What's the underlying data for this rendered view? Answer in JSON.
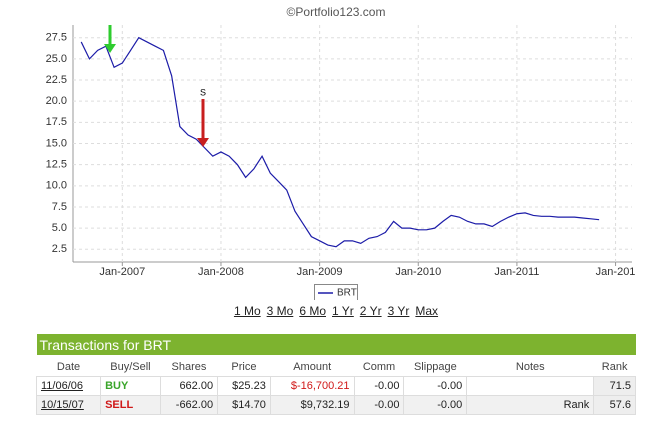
{
  "header": {
    "watermark": "©Portfolio123.com"
  },
  "chart_data": {
    "type": "line",
    "x": [
      "2006-08",
      "2006-09",
      "2006-10",
      "2006-11",
      "2006-12",
      "2007-01",
      "2007-02",
      "2007-03",
      "2007-04",
      "2007-05",
      "2007-06",
      "2007-07",
      "2007-08",
      "2007-09",
      "2007-10",
      "2007-11",
      "2007-12",
      "2008-01",
      "2008-02",
      "2008-03",
      "2008-04",
      "2008-05",
      "2008-06",
      "2008-07",
      "2008-08",
      "2008-09",
      "2008-10",
      "2008-11",
      "2008-12",
      "2009-01",
      "2009-02",
      "2009-03",
      "2009-04",
      "2009-05",
      "2009-06",
      "2009-07",
      "2009-08",
      "2009-09",
      "2009-10",
      "2009-11",
      "2009-12",
      "2010-01",
      "2010-02",
      "2010-03",
      "2010-04",
      "2010-05",
      "2010-06",
      "2010-07",
      "2010-08",
      "2010-09",
      "2010-10",
      "2010-11",
      "2010-12",
      "2011-01",
      "2011-02",
      "2011-03",
      "2011-04",
      "2011-05",
      "2011-06",
      "2011-07",
      "2011-08",
      "2011-09",
      "2011-10",
      "2011-11"
    ],
    "series": [
      {
        "name": "BRT",
        "color": "#1c1ca8",
        "values": [
          27,
          25,
          26,
          26.5,
          24,
          24.5,
          26,
          27.5,
          27,
          26.5,
          26,
          23,
          17,
          16,
          15.5,
          14.5,
          13.5,
          14,
          13.5,
          12.5,
          11,
          12,
          13.5,
          11.5,
          10.5,
          9.5,
          7,
          5.5,
          4,
          3.5,
          3,
          2.8,
          3.5,
          3.5,
          3.2,
          3.8,
          4,
          4.5,
          5.8,
          5,
          5,
          4.8,
          4.8,
          5,
          5.8,
          6.5,
          6.3,
          5.8,
          5.5,
          5.5,
          5.2,
          5.8,
          6.3,
          6.7,
          6.8,
          6.5,
          6.4,
          6.4,
          6.3,
          6.3,
          6.3,
          6.2,
          6.1,
          6
        ]
      }
    ],
    "xlim": [
      "2006-07",
      "2012-03"
    ],
    "xticks": [
      {
        "value": "2007-01",
        "label": "Jan-2007"
      },
      {
        "value": "2008-01",
        "label": "Jan-2008"
      },
      {
        "value": "2009-01",
        "label": "Jan-2009"
      },
      {
        "value": "2010-01",
        "label": "Jan-2010"
      },
      {
        "value": "2011-01",
        "label": "Jan-2011"
      },
      {
        "value": "2012-01",
        "label": "Jan-201"
      }
    ],
    "ylim": [
      1,
      29
    ],
    "yticks": [
      2.5,
      {
        "value": 5,
        "label": "5.0"
      },
      7.5,
      {
        "value": 10,
        "label": "10.0"
      },
      12.5,
      {
        "value": 15,
        "label": "15.0"
      },
      17.5,
      {
        "value": 20,
        "label": "20.0"
      },
      22.5,
      {
        "value": 25,
        "label": "25.0"
      },
      27.5
    ],
    "grid": true,
    "annotations": [
      "S"
    ]
  },
  "range_links": [
    "1 Mo",
    "3 Mo",
    "6 Mo",
    "1 Yr",
    "2 Yr",
    "3 Yr",
    "Max"
  ],
  "table": {
    "title": "Transactions for BRT",
    "columns": [
      "Date",
      "Buy/Sell",
      "Shares",
      "Price",
      "Amount",
      "Comm",
      "Slippage",
      "Notes",
      "Rank"
    ],
    "rows": [
      [
        "11/06/06",
        "BUY",
        "662.00",
        "$25.23",
        "$-16,700.21",
        "-0.00",
        "-0.00",
        null,
        "71.5"
      ],
      [
        "10/15/07",
        "SELL",
        "-662.00",
        "$14.70",
        "$9,732.19",
        "-0.00",
        "-0.00",
        "Rank",
        "57.6"
      ]
    ]
  }
}
